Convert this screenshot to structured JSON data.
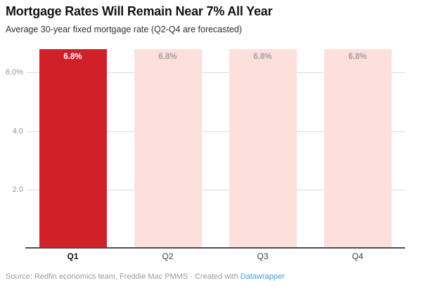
{
  "header": {
    "title": "Mortgage Rates Will Remain Near 7% All Year",
    "subtitle": "Average 30-year fixed mortgage rate (Q2-Q4 are forecasted)"
  },
  "chart_data": {
    "type": "bar",
    "title": "Mortgage Rates Will Remain Near 7% All Year",
    "subtitle": "Average 30-year fixed mortgage rate (Q2-Q4 are forecasted)",
    "categories": [
      "Q1",
      "Q2",
      "Q3",
      "Q4"
    ],
    "values": [
      6.8,
      6.8,
      6.8,
      6.8
    ],
    "value_labels": [
      "6.8%",
      "6.8%",
      "6.8%",
      "6.8%"
    ],
    "forecast": [
      false,
      true,
      true,
      true
    ],
    "xlabel": "",
    "ylabel": "",
    "ylim": [
      0,
      6.8
    ],
    "yticks": [
      {
        "v": 2,
        "label": "2.0"
      },
      {
        "v": 4,
        "label": "4.0"
      },
      {
        "v": 6,
        "label": "6.0%"
      }
    ],
    "grid": true,
    "legend_position": "none",
    "colors": {
      "actual_bar": "#d12128",
      "forecast_bar": "#fde0dc",
      "actual_value_label": "#ffffff",
      "forecast_value_label": "#a59e9e",
      "gridline": "#dcdcdc",
      "axis_line": "#4e4e4e",
      "ytick_label": "#949494"
    }
  },
  "footer": {
    "source_prefix": "Source: Redfin economics team, Freddie Mac PMMS · Created with ",
    "source_link_label": "Datawrapper"
  }
}
